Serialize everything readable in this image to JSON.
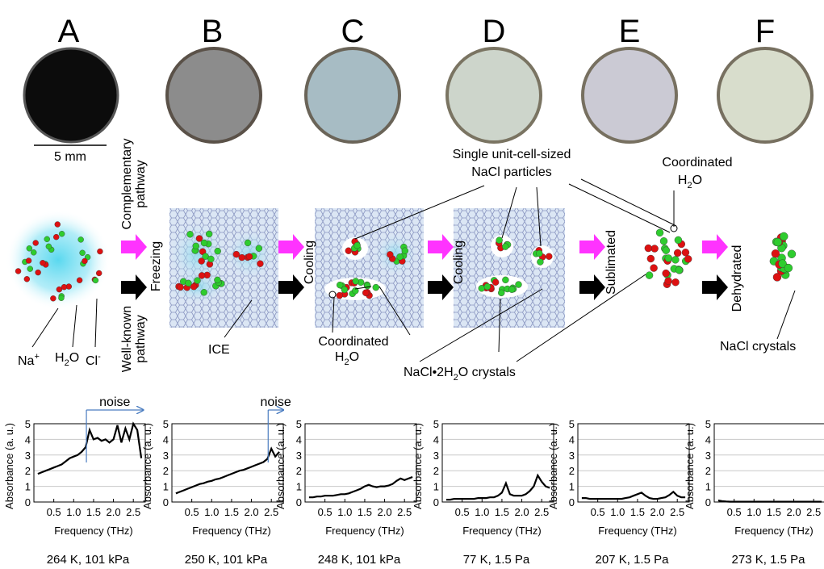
{
  "panels": [
    "A",
    "B",
    "C",
    "D",
    "E",
    "F"
  ],
  "scale_bar": "5 mm",
  "pathways": {
    "complementary": [
      "Complementary",
      "pathway"
    ],
    "well_known": [
      "Well-known",
      "pathway"
    ]
  },
  "steps": [
    "Freezing",
    "Cooling",
    "Cooling",
    "Sublimated",
    "Dehydrated"
  ],
  "labels": {
    "na": [
      "Na",
      "+"
    ],
    "h2o": [
      "H",
      "2",
      "O"
    ],
    "cl": [
      "Cl",
      "-"
    ],
    "ice": "ICE",
    "coordinated_1": [
      "Coordinated",
      "H",
      "2",
      "O"
    ],
    "particles": [
      "Single unit-cell-sized",
      "NaCl particles"
    ],
    "coordinated_2": [
      "Coordinated",
      "H",
      "2",
      "O"
    ],
    "dihydrate": [
      "NaCl•2H",
      "2",
      "O crystals"
    ],
    "nacl": "NaCl crystals"
  },
  "chart_data": [
    {
      "type": "line",
      "caption": "264  K, 101 kPa",
      "x_label": "Frequency (THz)",
      "y_label": "Absorbance (a. u.)",
      "color": "#000000",
      "x": [
        0.1,
        0.2,
        0.3,
        0.4,
        0.5,
        0.6,
        0.7,
        0.8,
        0.9,
        1.0,
        1.1,
        1.2,
        1.3,
        1.4,
        1.5,
        1.6,
        1.7,
        1.8,
        1.9,
        2.0,
        2.1,
        2.2,
        2.3,
        2.4,
        2.5,
        2.6,
        2.7
      ],
      "values": [
        1.8,
        1.9,
        2.0,
        2.1,
        2.2,
        2.3,
        2.4,
        2.6,
        2.8,
        2.9,
        3.0,
        3.2,
        3.5,
        4.6,
        4.0,
        4.1,
        3.9,
        4.0,
        3.8,
        4.0,
        4.9,
        3.8,
        4.7,
        4.0,
        5.0,
        4.6,
        2.8
      ],
      "xlim": [
        0,
        2.8
      ],
      "ylim": [
        0,
        5
      ],
      "xticks": [
        0.5,
        {
          "value": 1,
          "label": "1.0"
        },
        1.5,
        {
          "value": 2,
          "label": "2.0"
        },
        2.5
      ],
      "yticks": [
        0,
        1,
        2,
        3,
        4,
        5
      ],
      "grid": true,
      "annotations": [
        {
          "text": "noise",
          "x_start": 1.32,
          "x_end": 2.75
        }
      ]
    },
    {
      "type": "line",
      "caption": "250 K, 101 kPa",
      "x_label": "Frequency (THz)",
      "y_label": "Absorbance (a. u.)",
      "color": "#000000",
      "x": [
        0.1,
        0.2,
        0.3,
        0.4,
        0.5,
        0.6,
        0.7,
        0.8,
        0.9,
        1.0,
        1.1,
        1.2,
        1.3,
        1.4,
        1.5,
        1.6,
        1.7,
        1.8,
        1.9,
        2.0,
        2.1,
        2.2,
        2.3,
        2.4,
        2.5,
        2.6,
        2.7
      ],
      "values": [
        0.55,
        0.65,
        0.75,
        0.85,
        0.95,
        1.05,
        1.15,
        1.2,
        1.3,
        1.35,
        1.45,
        1.5,
        1.6,
        1.7,
        1.8,
        1.9,
        2.0,
        2.05,
        2.15,
        2.25,
        2.35,
        2.45,
        2.55,
        2.75,
        3.4,
        2.9,
        3.2
      ],
      "xlim": [
        0,
        2.8
      ],
      "ylim": [
        0,
        5
      ],
      "xticks": [
        0.5,
        {
          "value": 1,
          "label": "1.0"
        },
        1.5,
        {
          "value": 2,
          "label": "2.0"
        },
        2.5
      ],
      "yticks": [
        0,
        1,
        2,
        3,
        4,
        5
      ],
      "grid": true,
      "annotations": [
        {
          "text": "noise",
          "x_start": 2.42,
          "x_end": 2.8
        }
      ]
    },
    {
      "type": "line",
      "caption": "248  K, 101 kPa",
      "x_label": "Frequency (THz)",
      "y_label": "Absorbance (a. u.)",
      "color": "#000000",
      "x": [
        0.1,
        0.2,
        0.3,
        0.4,
        0.5,
        0.6,
        0.7,
        0.8,
        0.9,
        1.0,
        1.1,
        1.2,
        1.3,
        1.4,
        1.5,
        1.6,
        1.7,
        1.8,
        1.9,
        2.0,
        2.1,
        2.2,
        2.3,
        2.4,
        2.5,
        2.6,
        2.7
      ],
      "values": [
        0.3,
        0.3,
        0.35,
        0.35,
        0.4,
        0.4,
        0.4,
        0.45,
        0.5,
        0.5,
        0.55,
        0.65,
        0.75,
        0.85,
        1.0,
        1.1,
        1.0,
        0.95,
        1.0,
        1.0,
        1.05,
        1.15,
        1.35,
        1.5,
        1.4,
        1.5,
        1.6
      ],
      "xlim": [
        0,
        2.8
      ],
      "ylim": [
        0,
        5
      ],
      "xticks": [
        0.5,
        {
          "value": 1,
          "label": "1.0"
        },
        1.5,
        {
          "value": 2,
          "label": "2.0"
        },
        2.5
      ],
      "yticks": [
        0,
        1,
        2,
        3,
        4,
        5
      ],
      "grid": true
    },
    {
      "type": "line",
      "caption": "77 K, 1.5 Pa",
      "x_label": "Frequency (THz)",
      "y_label": "Absorbance (a. u.)",
      "color": "#000000",
      "x": [
        0.1,
        0.2,
        0.3,
        0.4,
        0.5,
        0.6,
        0.7,
        0.8,
        0.9,
        1.0,
        1.1,
        1.2,
        1.3,
        1.4,
        1.5,
        1.6,
        1.7,
        1.8,
        1.9,
        2.0,
        2.1,
        2.2,
        2.3,
        2.4,
        2.5,
        2.6,
        2.7
      ],
      "values": [
        0.15,
        0.15,
        0.2,
        0.2,
        0.2,
        0.2,
        0.2,
        0.2,
        0.25,
        0.25,
        0.25,
        0.3,
        0.3,
        0.4,
        0.6,
        1.2,
        0.5,
        0.4,
        0.4,
        0.4,
        0.5,
        0.7,
        1.0,
        1.7,
        1.3,
        1.0,
        0.9
      ],
      "xlim": [
        0,
        2.8
      ],
      "ylim": [
        0,
        5
      ],
      "xticks": [
        0.5,
        {
          "value": 1,
          "label": "1.0"
        },
        1.5,
        {
          "value": 2,
          "label": "2.0"
        },
        2.5
      ],
      "yticks": [
        0,
        1,
        2,
        3,
        4,
        5
      ],
      "grid": true
    },
    {
      "type": "line",
      "caption": "207 K, 1.5 Pa",
      "x_label": "Frequency (THz)",
      "y_label": "Absorbance (a. u.)",
      "color": "#000000",
      "x": [
        0.1,
        0.2,
        0.3,
        0.4,
        0.5,
        0.6,
        0.7,
        0.8,
        0.9,
        1.0,
        1.1,
        1.2,
        1.3,
        1.4,
        1.5,
        1.6,
        1.7,
        1.8,
        1.9,
        2.0,
        2.1,
        2.2,
        2.3,
        2.4,
        2.5,
        2.6,
        2.7
      ],
      "values": [
        0.25,
        0.25,
        0.2,
        0.2,
        0.2,
        0.2,
        0.2,
        0.2,
        0.2,
        0.2,
        0.2,
        0.25,
        0.3,
        0.4,
        0.5,
        0.6,
        0.4,
        0.25,
        0.2,
        0.2,
        0.25,
        0.3,
        0.45,
        0.65,
        0.4,
        0.3,
        0.3
      ],
      "xlim": [
        0,
        2.8
      ],
      "ylim": [
        0,
        5
      ],
      "xticks": [
        0.5,
        {
          "value": 1,
          "label": "1.0"
        },
        1.5,
        {
          "value": 2,
          "label": "2.0"
        },
        2.5
      ],
      "yticks": [
        0,
        1,
        2,
        3,
        4,
        5
      ],
      "grid": true
    },
    {
      "type": "line",
      "caption": "273 K, 1.5 Pa",
      "x_label": "Frequency (THz)",
      "y_label": "Absorbance (a. u.)",
      "color": "#000000",
      "x": [
        0.1,
        0.2,
        0.3,
        0.4,
        0.5,
        0.6,
        0.7,
        0.8,
        0.9,
        1.0,
        1.1,
        1.2,
        1.3,
        1.4,
        1.5,
        1.6,
        1.7,
        1.8,
        1.9,
        2.0,
        2.1,
        2.2,
        2.3,
        2.4,
        2.5,
        2.6,
        2.7
      ],
      "values": [
        0.1,
        0.05,
        0.03,
        0.02,
        0.02,
        0.02,
        0.02,
        0.02,
        0.02,
        0.02,
        0.02,
        0.02,
        0.02,
        0.02,
        0.02,
        0.02,
        0.02,
        0.02,
        0.02,
        0.02,
        0.02,
        0.02,
        0.02,
        0.02,
        0.02,
        0.02,
        0.02
      ],
      "xlim": [
        0,
        2.8
      ],
      "ylim": [
        0,
        5
      ],
      "xticks": [
        0.5,
        {
          "value": 1,
          "label": "1.0"
        },
        1.5,
        {
          "value": 2,
          "label": "2.0"
        },
        2.5
      ],
      "yticks": [
        0,
        1,
        2,
        3,
        4,
        5
      ],
      "grid": true
    }
  ]
}
